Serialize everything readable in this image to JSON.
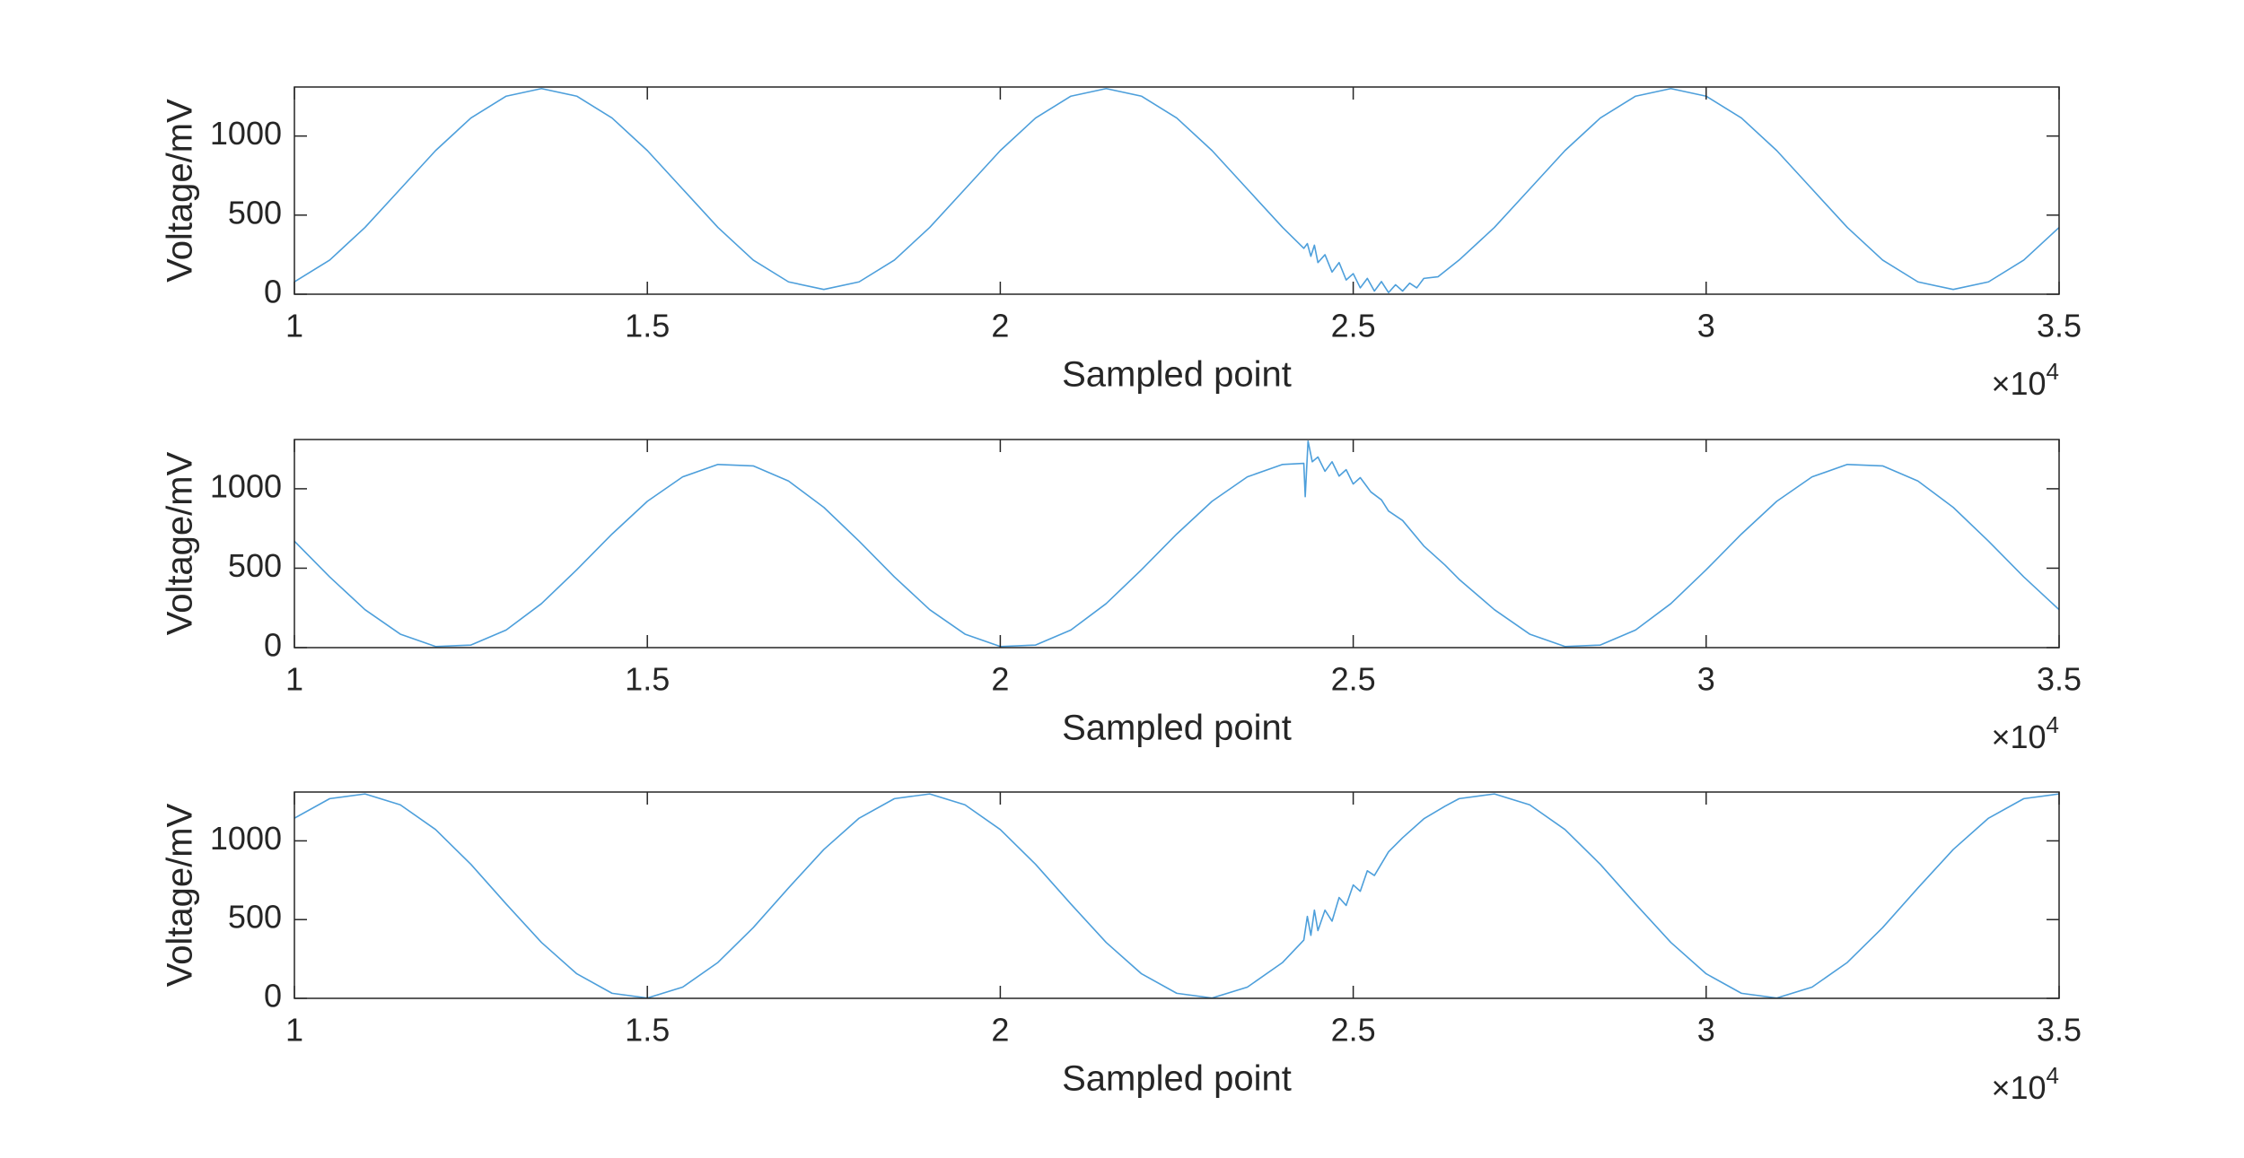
{
  "chart_data": [
    {
      "type": "line",
      "ylabel": "Voltage/mV",
      "xlabel": "Sampled point",
      "x_exponent": {
        "base": "×10",
        "power": "4"
      },
      "color": "#4d9fdb",
      "xlim": [
        10000,
        35000
      ],
      "ylim": [
        0,
        1310
      ],
      "xticks": [
        {
          "value": 10000,
          "label": "1"
        },
        {
          "value": 15000,
          "label": "1.5"
        },
        {
          "value": 20000,
          "label": "2"
        },
        {
          "value": 25000,
          "label": "2.5"
        },
        {
          "value": 30000,
          "label": "3"
        },
        {
          "value": 35000,
          "label": "3.5"
        }
      ],
      "yticks": [
        0,
        500,
        1000
      ],
      "x": [
        10000,
        10500,
        11000,
        11500,
        12000,
        12500,
        13000,
        13500,
        14000,
        14500,
        15000,
        15500,
        16000,
        16500,
        17000,
        17500,
        18000,
        18500,
        19000,
        19500,
        20000,
        20500,
        21000,
        21500,
        22000,
        22500,
        23000,
        23500,
        24000,
        24300,
        24350,
        24400,
        24450,
        24500,
        24600,
        24700,
        24800,
        24900,
        25000,
        25100,
        25200,
        25300,
        25400,
        25500,
        25600,
        25700,
        25800,
        25900,
        26000,
        26200,
        26500,
        27000,
        27500,
        28000,
        28500,
        29000,
        29500,
        30000,
        30500,
        31000,
        31500,
        32000,
        32500,
        33000,
        33500,
        34000,
        34500,
        35000
      ],
      "values": [
        78,
        216,
        422,
        665,
        908,
        1114,
        1252,
        1300,
        1252,
        1114,
        908,
        665,
        422,
        216,
        78,
        30,
        78,
        216,
        422,
        665,
        908,
        1114,
        1252,
        1300,
        1252,
        1114,
        908,
        665,
        422,
        290,
        320,
        240,
        310,
        200,
        250,
        140,
        200,
        90,
        130,
        40,
        100,
        20,
        80,
        10,
        60,
        20,
        70,
        40,
        100,
        110,
        216,
        422,
        665,
        908,
        1114,
        1252,
        1300,
        1252,
        1114,
        908,
        665,
        422,
        216,
        78,
        30,
        78,
        216,
        422
      ]
    },
    {
      "type": "line",
      "ylabel": "Voltage/mV",
      "xlabel": "Sampled point",
      "x_exponent": {
        "base": "×10",
        "power": "4"
      },
      "color": "#4d9fdb",
      "xlim": [
        10000,
        35000
      ],
      "ylim": [
        0,
        1310
      ],
      "xticks": [
        {
          "value": 10000,
          "label": "1"
        },
        {
          "value": 15000,
          "label": "1.5"
        },
        {
          "value": 20000,
          "label": "2"
        },
        {
          "value": 25000,
          "label": "2.5"
        },
        {
          "value": 30000,
          "label": "3"
        },
        {
          "value": 35000,
          "label": "3.5"
        }
      ],
      "yticks": [
        0,
        500,
        1000
      ],
      "x": [
        10000,
        10500,
        11000,
        11500,
        12000,
        12500,
        13000,
        13500,
        14000,
        14500,
        15000,
        15500,
        16000,
        16500,
        17000,
        17500,
        18000,
        18500,
        19000,
        19500,
        20000,
        20500,
        21000,
        21500,
        22000,
        22500,
        23000,
        23500,
        24000,
        24300,
        24320,
        24360,
        24420,
        24500,
        24600,
        24700,
        24800,
        24900,
        25000,
        25100,
        25250,
        25400,
        25500,
        25700,
        26000,
        26300,
        26500,
        27000,
        27500,
        28000,
        28500,
        29000,
        29500,
        30000,
        30500,
        31000,
        31500,
        32000,
        32500,
        33000,
        33500,
        34000,
        34500,
        35000
      ],
      "values": [
        670,
        445,
        239,
        85,
        7,
        16,
        111,
        277,
        490,
        715,
        921,
        1075,
        1153,
        1144,
        1049,
        883,
        670,
        445,
        239,
        85,
        7,
        16,
        111,
        277,
        490,
        715,
        921,
        1075,
        1153,
        1160,
        950,
        1300,
        1170,
        1200,
        1110,
        1170,
        1080,
        1120,
        1030,
        1070,
        980,
        930,
        860,
        800,
        640,
        520,
        430,
        239,
        85,
        7,
        16,
        111,
        277,
        490,
        715,
        921,
        1075,
        1153,
        1144,
        1049,
        883,
        670,
        445,
        239
      ]
    },
    {
      "type": "line",
      "ylabel": "Voltage/mV",
      "xlabel": "Sampled point",
      "x_exponent": {
        "base": "×10",
        "power": "4"
      },
      "color": "#4d9fdb",
      "xlim": [
        10000,
        35000
      ],
      "ylim": [
        0,
        1310
      ],
      "xticks": [
        {
          "value": 10000,
          "label": "1"
        },
        {
          "value": 15000,
          "label": "1.5"
        },
        {
          "value": 20000,
          "label": "2"
        },
        {
          "value": 25000,
          "label": "2.5"
        },
        {
          "value": 30000,
          "label": "3"
        },
        {
          "value": 35000,
          "label": "3.5"
        }
      ],
      "yticks": [
        0,
        500,
        1000
      ],
      "x": [
        10000,
        10500,
        11000,
        11500,
        12000,
        12500,
        13000,
        13500,
        14000,
        14500,
        15000,
        15500,
        16000,
        16500,
        17000,
        17500,
        18000,
        18500,
        19000,
        19500,
        20000,
        20500,
        21000,
        21500,
        22000,
        22500,
        23000,
        23500,
        24000,
        24300,
        24350,
        24400,
        24450,
        24500,
        24600,
        24700,
        24800,
        24900,
        25000,
        25100,
        25200,
        25300,
        25500,
        25700,
        26000,
        26300,
        26500,
        27000,
        27500,
        28000,
        28500,
        29000,
        29500,
        30000,
        30500,
        31000,
        31500,
        32000,
        32500,
        33000,
        33500,
        34000,
        34500,
        35000
      ],
      "values": [
        1144,
        1268,
        1298,
        1229,
        1072,
        851,
        599,
        355,
        156,
        32,
        2,
        71,
        228,
        449,
        701,
        945,
        1144,
        1268,
        1298,
        1229,
        1072,
        851,
        599,
        355,
        156,
        32,
        2,
        71,
        228,
        370,
        520,
        400,
        560,
        430,
        560,
        490,
        640,
        590,
        720,
        680,
        810,
        780,
        930,
        1020,
        1140,
        1220,
        1268,
        1298,
        1229,
        1072,
        851,
        599,
        355,
        156,
        32,
        2,
        71,
        228,
        449,
        701,
        945,
        1144,
        1268,
        1298
      ]
    }
  ]
}
